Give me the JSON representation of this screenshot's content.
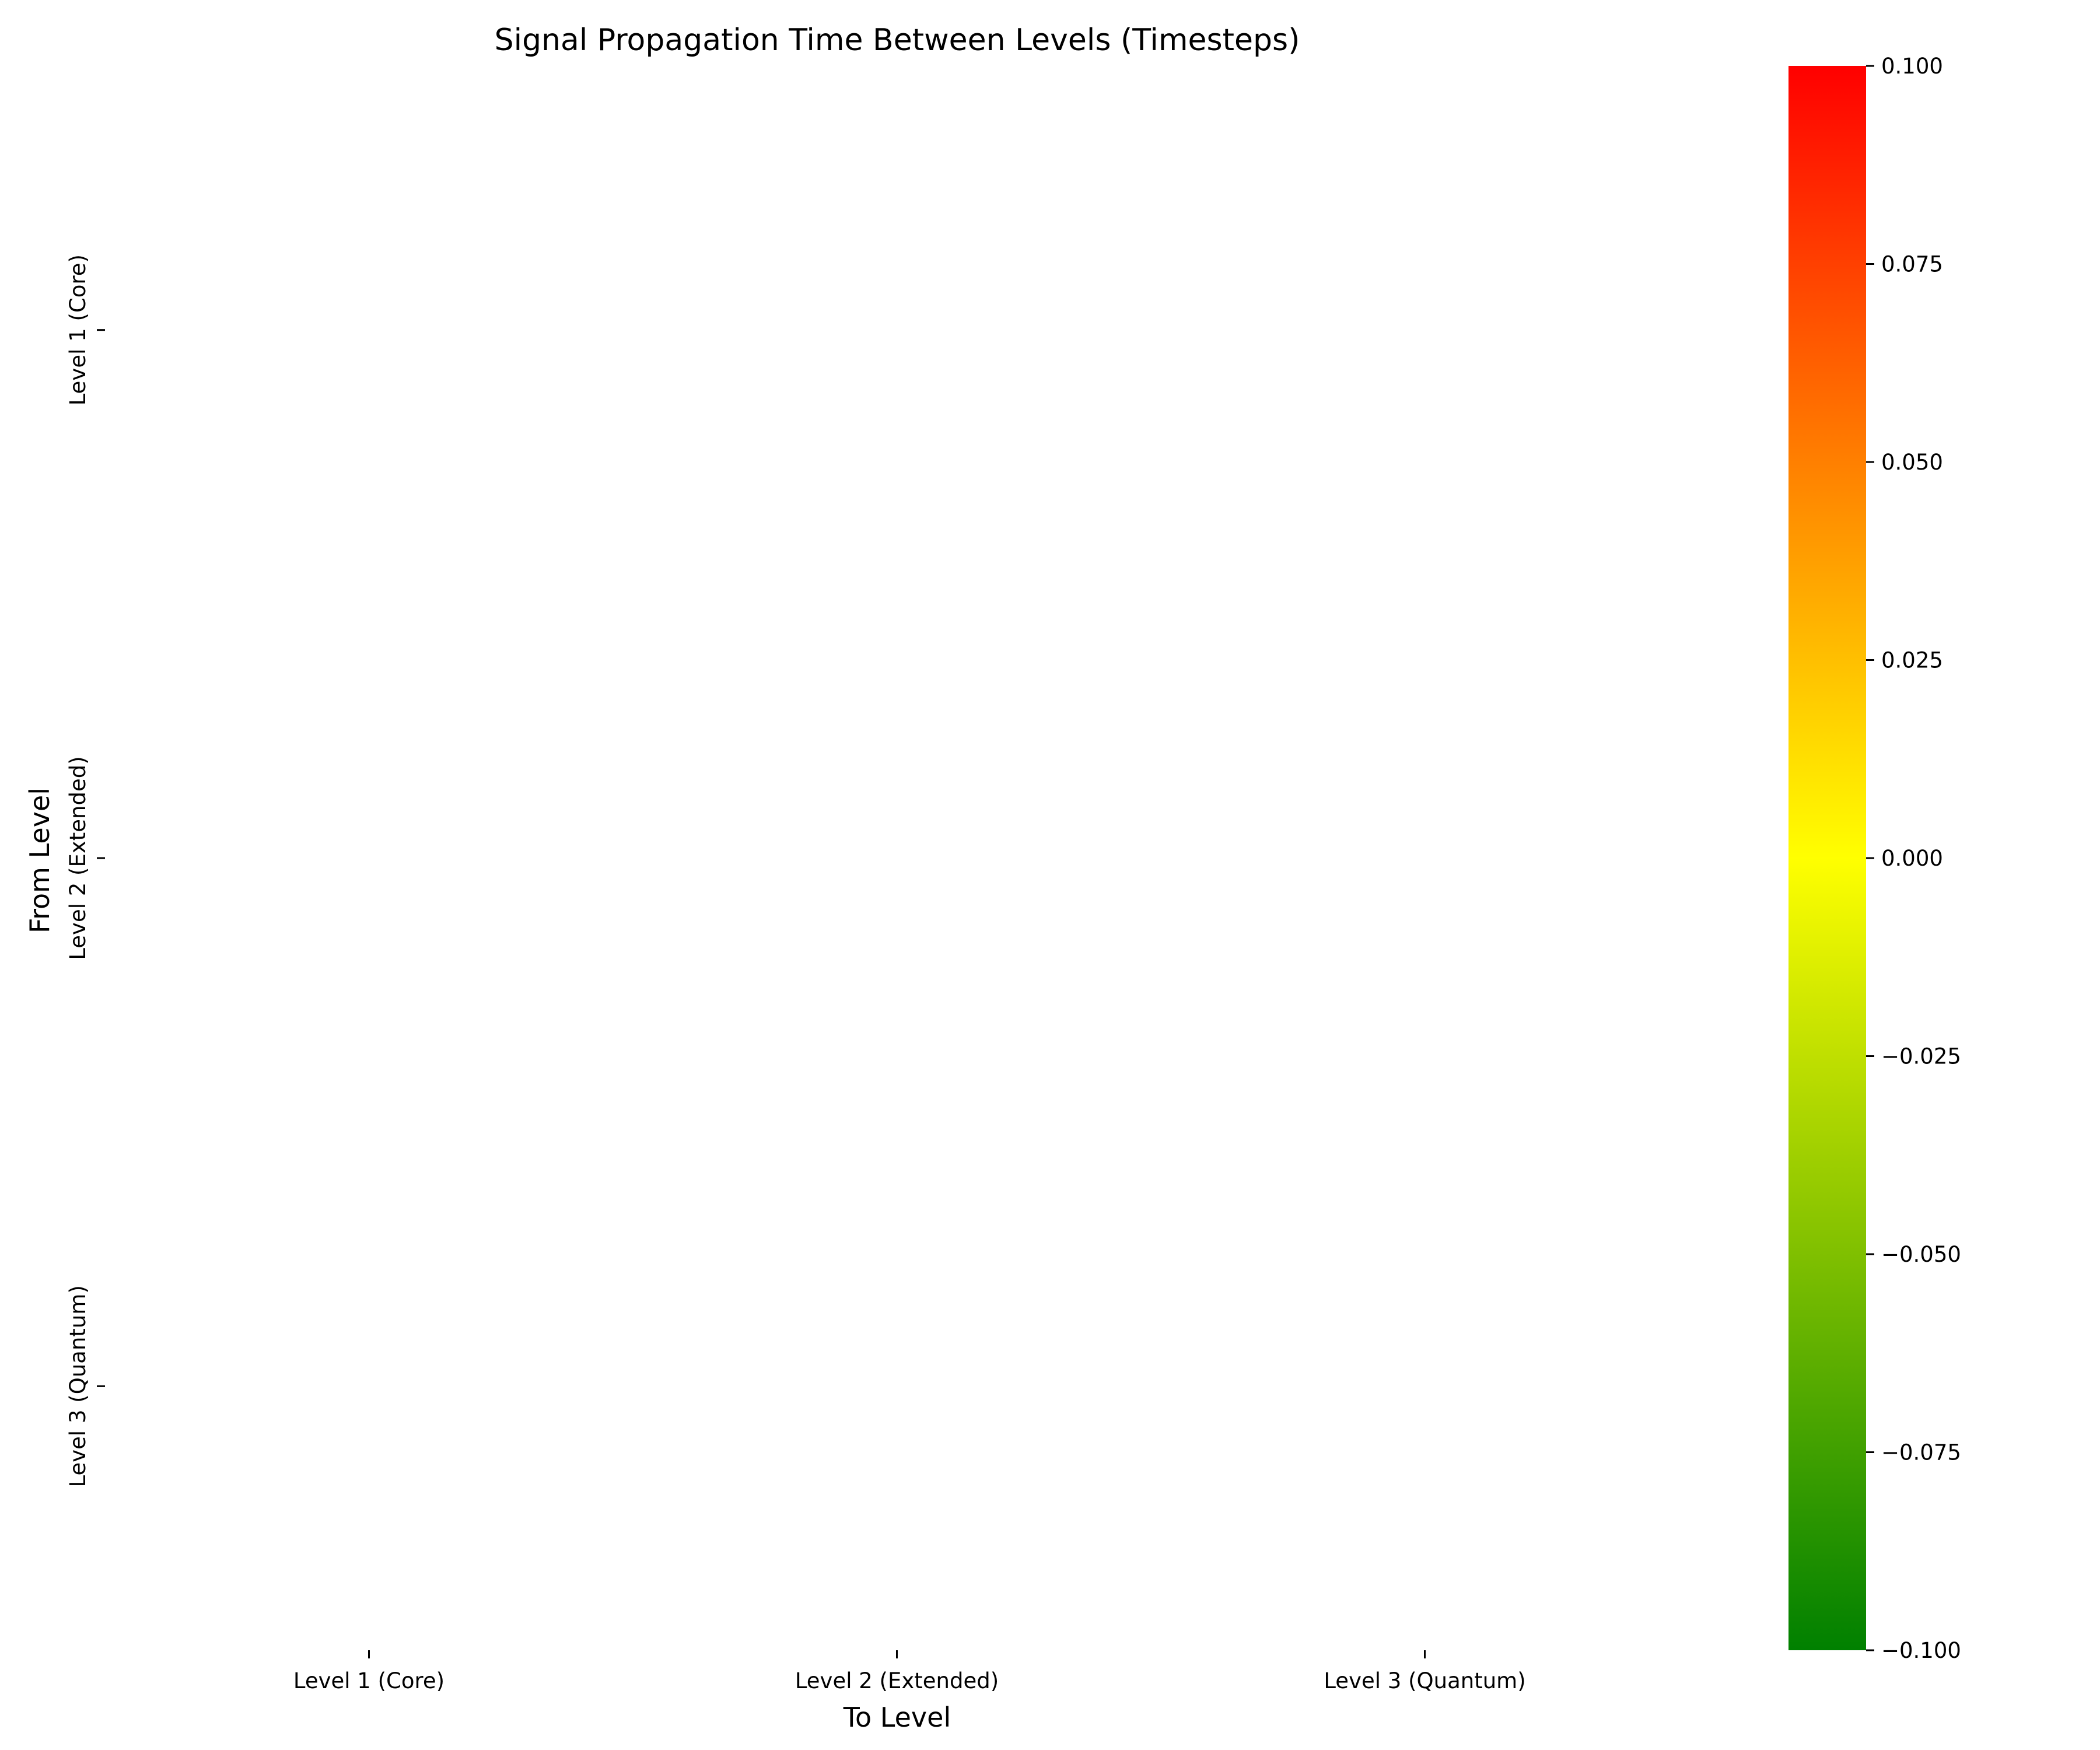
{
  "chart_data": {
    "type": "heatmap",
    "title": "Signal Propagation Time Between Levels (Timesteps)",
    "xlabel": "To Level",
    "ylabel": "From Level",
    "x_categories": [
      "Level 1 (Core)",
      "Level 2 (Extended)",
      "Level 3 (Quantum)"
    ],
    "y_categories": [
      "Level 1 (Core)",
      "Level 2 (Extended)",
      "Level 3 (Quantum)"
    ],
    "values": [
      [
        null,
        null,
        null
      ],
      [
        null,
        null,
        null
      ],
      [
        null,
        null,
        null
      ]
    ],
    "cell_color": "#ffffff",
    "colorbar": {
      "vmin": -0.1,
      "vmax": 0.1,
      "colors": [
        "#008000",
        "#ffff00",
        "#ff0000"
      ],
      "ticks": [
        -0.1,
        -0.075,
        -0.05,
        -0.025,
        0.0,
        0.025,
        0.05,
        0.075,
        0.1
      ],
      "tick_labels": [
        "−0.100",
        "−0.075",
        "−0.050",
        "−0.025",
        "0.000",
        "0.025",
        "0.050",
        "0.075",
        "0.100"
      ]
    },
    "grid": false,
    "legend": "colorbar-right"
  }
}
